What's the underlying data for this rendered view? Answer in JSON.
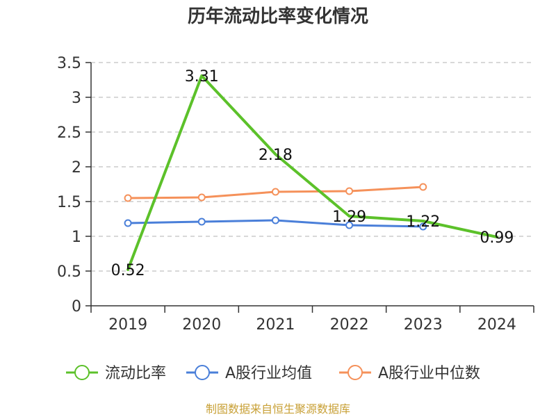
{
  "chart_data": {
    "type": "line",
    "title": "历年流动比率变化情况",
    "categories": [
      "2019",
      "2020",
      "2021",
      "2022",
      "2023",
      "2024"
    ],
    "ylim": [
      0,
      3.5
    ],
    "yticks": [
      0,
      0.5,
      1,
      1.5,
      2,
      2.5,
      3,
      3.5
    ],
    "ytick_labels": [
      "0",
      "0.5",
      "1",
      "1.5",
      "2",
      "2.5",
      "3",
      "3.5"
    ],
    "grid": true,
    "legend_position": "bottom",
    "series": [
      {
        "name": "流动比率",
        "color": "#5cc12a",
        "values": [
          0.52,
          3.31,
          2.18,
          1.29,
          1.22,
          0.99
        ],
        "labels": [
          "0.52",
          "3.31",
          "2.18",
          "1.29",
          "1.22",
          "0.99"
        ]
      },
      {
        "name": "A股行业均值",
        "color": "#4a7fd9",
        "values": [
          1.19,
          1.21,
          1.23,
          1.16,
          1.14,
          null
        ]
      },
      {
        "name": "A股行业中位数",
        "color": "#f5915a",
        "values": [
          1.55,
          1.56,
          1.64,
          1.65,
          1.71,
          null
        ]
      }
    ]
  },
  "source": "制图数据来自恒生聚源数据库"
}
